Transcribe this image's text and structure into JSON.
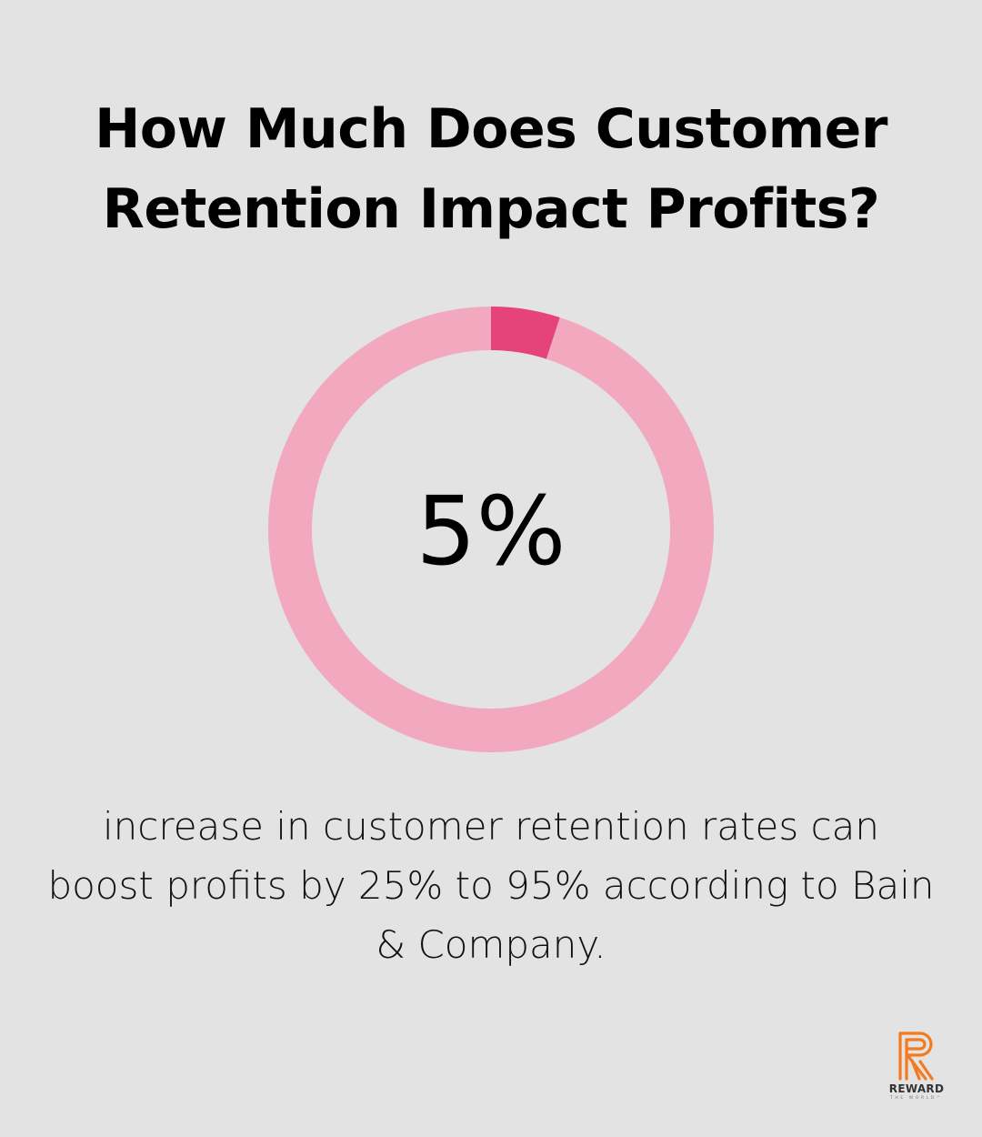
{
  "title": {
    "line1": "How Much Does Customer",
    "line2": "Retention Impact Profits?"
  },
  "chart_data": {
    "type": "pie",
    "donut": true,
    "value": 5,
    "max": 100,
    "center_label": "5%",
    "colors": {
      "highlight": "#e6437a",
      "remainder": "#f2a9c0"
    }
  },
  "caption": {
    "line1": "increase in customer retention rates can",
    "line2": "boost profits by 25% to 95% according to Bain",
    "line3": "& Company."
  },
  "logo": {
    "wordmark": "REWARD",
    "tagline": "THE WORLD™",
    "icon": "reward-r-logo-icon",
    "color": "#f47a20"
  },
  "background_color": "#e2e3e2"
}
